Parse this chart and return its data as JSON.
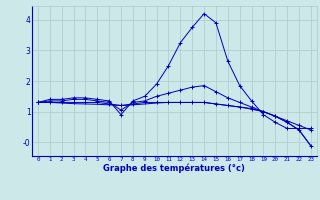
{
  "xlabel": "Graphe des températures (°c)",
  "background_color": "#cce8e8",
  "line_color": "#0000bb",
  "grid_color": "#aacccc",
  "xlim": [
    -0.5,
    23.5
  ],
  "ylim": [
    -0.45,
    4.45
  ],
  "yticks": [
    0,
    1,
    2,
    3,
    4
  ],
  "ytick_labels": [
    "-0",
    "1",
    "2",
    "3",
    "4"
  ],
  "xticks": [
    0,
    1,
    2,
    3,
    4,
    5,
    6,
    7,
    8,
    9,
    10,
    11,
    12,
    13,
    14,
    15,
    16,
    17,
    18,
    19,
    20,
    21,
    22,
    23
  ],
  "series1_x": [
    0,
    1,
    2,
    3,
    4,
    5,
    6,
    7,
    8,
    9,
    10,
    11,
    12,
    13,
    14,
    15,
    16,
    17,
    18,
    19,
    20,
    21,
    22,
    23
  ],
  "series1_y": [
    1.3,
    1.4,
    1.4,
    1.45,
    1.45,
    1.4,
    1.35,
    0.9,
    1.35,
    1.5,
    1.9,
    2.5,
    3.25,
    3.75,
    4.2,
    3.9,
    2.65,
    1.85,
    1.35,
    0.9,
    0.65,
    0.45,
    0.45,
    0.45
  ],
  "series2_x": [
    0,
    1,
    2,
    3,
    4,
    5,
    6,
    7,
    8,
    9,
    10,
    11,
    12,
    13,
    14,
    15,
    16,
    17,
    18,
    19,
    20,
    21,
    22,
    23
  ],
  "series2_y": [
    1.3,
    1.35,
    1.35,
    1.4,
    1.4,
    1.35,
    1.3,
    1.05,
    1.3,
    1.35,
    1.5,
    1.6,
    1.7,
    1.8,
    1.85,
    1.65,
    1.45,
    1.3,
    1.15,
    1.0,
    0.85,
    0.7,
    0.55,
    0.4
  ],
  "series3_x": [
    0,
    1,
    2,
    3,
    4,
    5,
    6,
    7,
    8,
    9,
    10,
    11,
    12,
    13,
    14,
    15,
    16,
    17,
    18,
    19,
    20,
    21,
    22,
    23
  ],
  "series3_y": [
    1.3,
    1.3,
    1.3,
    1.3,
    1.3,
    1.3,
    1.25,
    1.2,
    1.25,
    1.3,
    1.3,
    1.3,
    1.3,
    1.3,
    1.3,
    1.25,
    1.2,
    1.15,
    1.1,
    1.0,
    0.85,
    0.65,
    0.4,
    -0.12
  ],
  "series4_x": [
    0,
    1,
    2,
    3,
    4,
    5,
    6,
    7,
    8,
    9,
    10,
    11,
    12,
    13,
    14,
    15,
    16,
    17,
    18,
    19,
    20,
    21,
    22,
    23
  ],
  "series4_y": [
    1.3,
    1.3,
    1.28,
    1.26,
    1.25,
    1.24,
    1.22,
    1.2,
    1.22,
    1.25,
    1.28,
    1.3,
    1.3,
    1.3,
    1.3,
    1.25,
    1.2,
    1.15,
    1.08,
    1.0,
    0.85,
    0.65,
    0.4,
    -0.12
  ]
}
